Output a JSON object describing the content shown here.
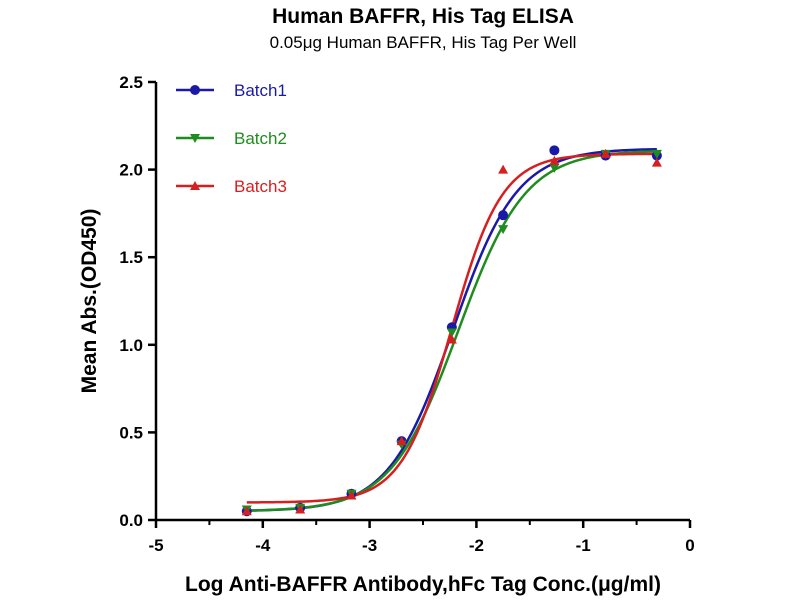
{
  "chart_data": {
    "type": "scatter",
    "title": "Human BAFFR, His Tag ELISA",
    "subtitle": "0.05μg Human BAFFR, His Tag Per Well",
    "xlabel": "Log Anti-BAFFR Antibody,hFc Tag Conc.(μg/ml)",
    "ylabel": "Mean Abs.(OD450)",
    "xlim": [
      -5,
      0
    ],
    "ylim": [
      0,
      2.5
    ],
    "x_ticks": [
      "-5",
      "-4",
      "-3",
      "-2",
      "-1",
      "0"
    ],
    "y_ticks": [
      "0.0",
      "0.5",
      "1.0",
      "1.5",
      "2.0",
      "2.5"
    ],
    "grid": false,
    "legend": "top-left",
    "series": [
      {
        "name": "Batch1",
        "color": "#1a1aa6",
        "marker": "circle",
        "x": [
          -4.15,
          -3.65,
          -3.17,
          -2.7,
          -2.23,
          -1.75,
          -1.27,
          -0.79,
          -0.31
        ],
        "y": [
          0.05,
          0.07,
          0.15,
          0.45,
          1.1,
          1.74,
          2.11,
          2.08,
          2.08
        ],
        "fit": {
          "bottom": 0.05,
          "top": 2.12,
          "logEC50": -2.22,
          "hill": 1.45
        }
      },
      {
        "name": "Batch2",
        "color": "#1e8c1e",
        "marker": "triangle-down",
        "x": [
          -4.15,
          -3.65,
          -3.17,
          -2.7,
          -2.23,
          -1.75,
          -1.27,
          -0.79,
          -0.31
        ],
        "y": [
          0.06,
          0.07,
          0.15,
          0.43,
          1.07,
          1.66,
          2.01,
          2.09,
          2.09
        ],
        "fit": {
          "bottom": 0.05,
          "top": 2.11,
          "logEC50": -2.17,
          "hill": 1.38
        }
      },
      {
        "name": "Batch3",
        "color": "#d42020",
        "marker": "triangle-up",
        "x": [
          -4.15,
          -3.65,
          -3.17,
          -2.7,
          -2.23,
          -1.75,
          -1.27,
          -0.79,
          -0.31
        ],
        "y": [
          0.05,
          0.06,
          0.14,
          0.45,
          1.03,
          2.0,
          2.05,
          2.09,
          2.04
        ],
        "fit": {
          "bottom": 0.1,
          "top": 2.09,
          "logEC50": -2.23,
          "hill": 1.85
        }
      }
    ]
  }
}
